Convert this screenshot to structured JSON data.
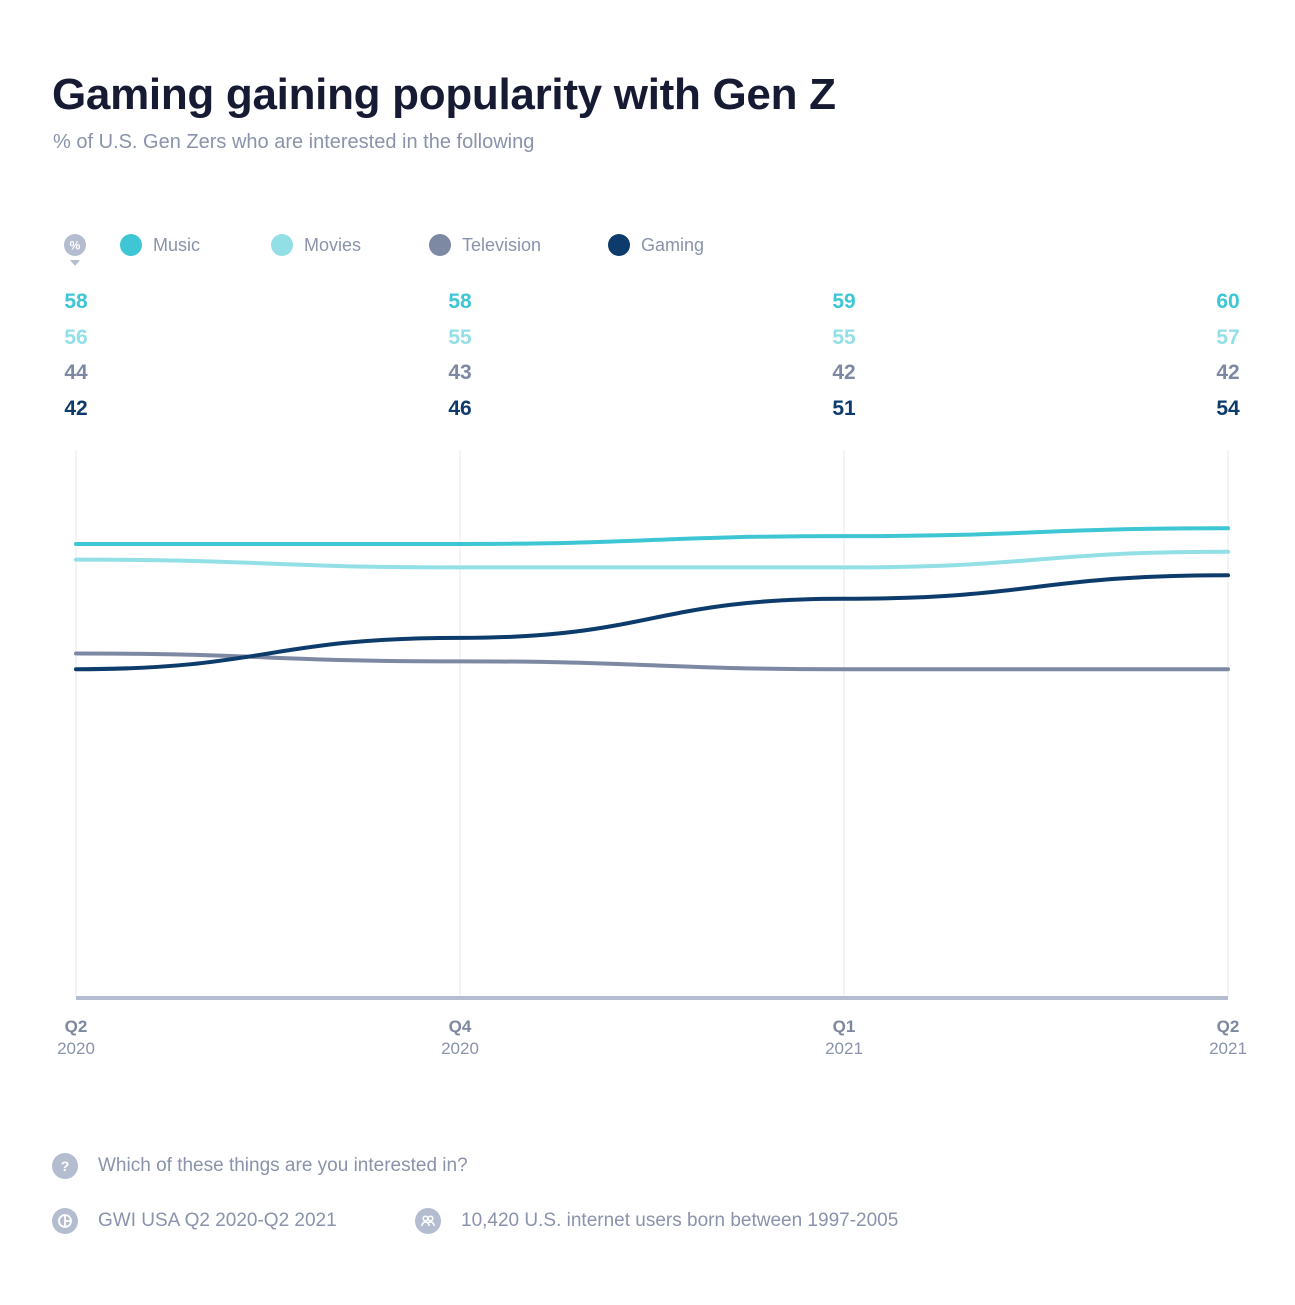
{
  "title": "Gaming gaining popularity with Gen Z",
  "subtitle": "% of U.S. Gen Zers who are interested in the following",
  "legend": {
    "unit_marker": "%",
    "items": [
      {
        "label": "Music",
        "color": "#3ec6d4"
      },
      {
        "label": "Movies",
        "color": "#93dfe6"
      },
      {
        "label": "Television",
        "color": "#7d88a2"
      },
      {
        "label": "Gaming",
        "color": "#0d3b6b"
      }
    ]
  },
  "chart_data": {
    "type": "line",
    "categories": [
      {
        "q": "Q2",
        "year": "2020"
      },
      {
        "q": "Q4",
        "year": "2020"
      },
      {
        "q": "Q1",
        "year": "2021"
      },
      {
        "q": "Q2",
        "year": "2021"
      }
    ],
    "series": [
      {
        "name": "Music",
        "color": "#3ec6d4",
        "values": [
          58,
          58,
          59,
          60
        ]
      },
      {
        "name": "Movies",
        "color": "#93dfe6",
        "values": [
          56,
          55,
          55,
          57
        ]
      },
      {
        "name": "Television",
        "color": "#7d88a2",
        "values": [
          44,
          43,
          42,
          42
        ]
      },
      {
        "name": "Gaming",
        "color": "#0d3b6b",
        "values": [
          42,
          46,
          51,
          54
        ]
      }
    ],
    "ylim": [
      0,
      70
    ],
    "grid": "vertical"
  },
  "footer": {
    "question": "Which of these things are you interested in?",
    "source": "GWI USA Q2 2020-Q2 2021",
    "sample": "10,420 U.S. internet users born between 1997-2005"
  }
}
